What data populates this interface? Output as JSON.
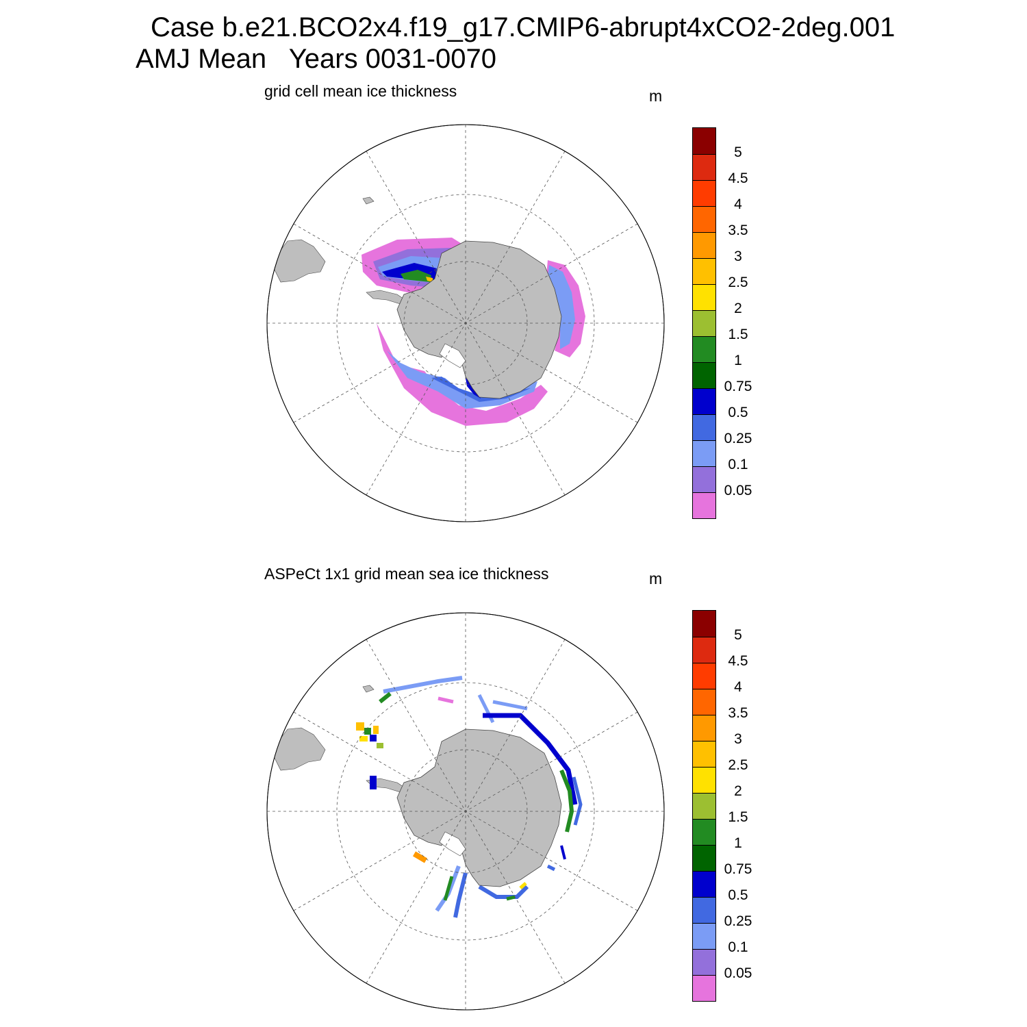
{
  "header": {
    "case_line": "Case b.e21.BCO2x4.f19_g17.CMIP6-abrupt4xCO2-2deg.001",
    "season_line": "AMJ Mean   Years 0031-0070"
  },
  "panels": [
    {
      "title": "grid cell mean ice thickness",
      "unit": "m"
    },
    {
      "title": "ASPeCt 1x1 grid mean sea ice thickness",
      "unit": "m"
    }
  ],
  "colorbar": {
    "labels": [
      "5",
      "4.5",
      "4",
      "3.5",
      "3",
      "2.5",
      "2",
      "1.5",
      "1",
      "0.75",
      "0.5",
      "0.25",
      "0.1",
      "0.05"
    ],
    "colors": [
      "#8b0000",
      "#dd2a10",
      "#ff3c00",
      "#ff6600",
      "#ff9900",
      "#ffc000",
      "#ffe100",
      "#9cbf31",
      "#228b22",
      "#006400",
      "#0000cd",
      "#4169e1",
      "#7b9cf5",
      "#9370db",
      "#e674dd"
    ]
  },
  "colors": {
    "land": "#bebebe",
    "grid": "#555555"
  }
}
